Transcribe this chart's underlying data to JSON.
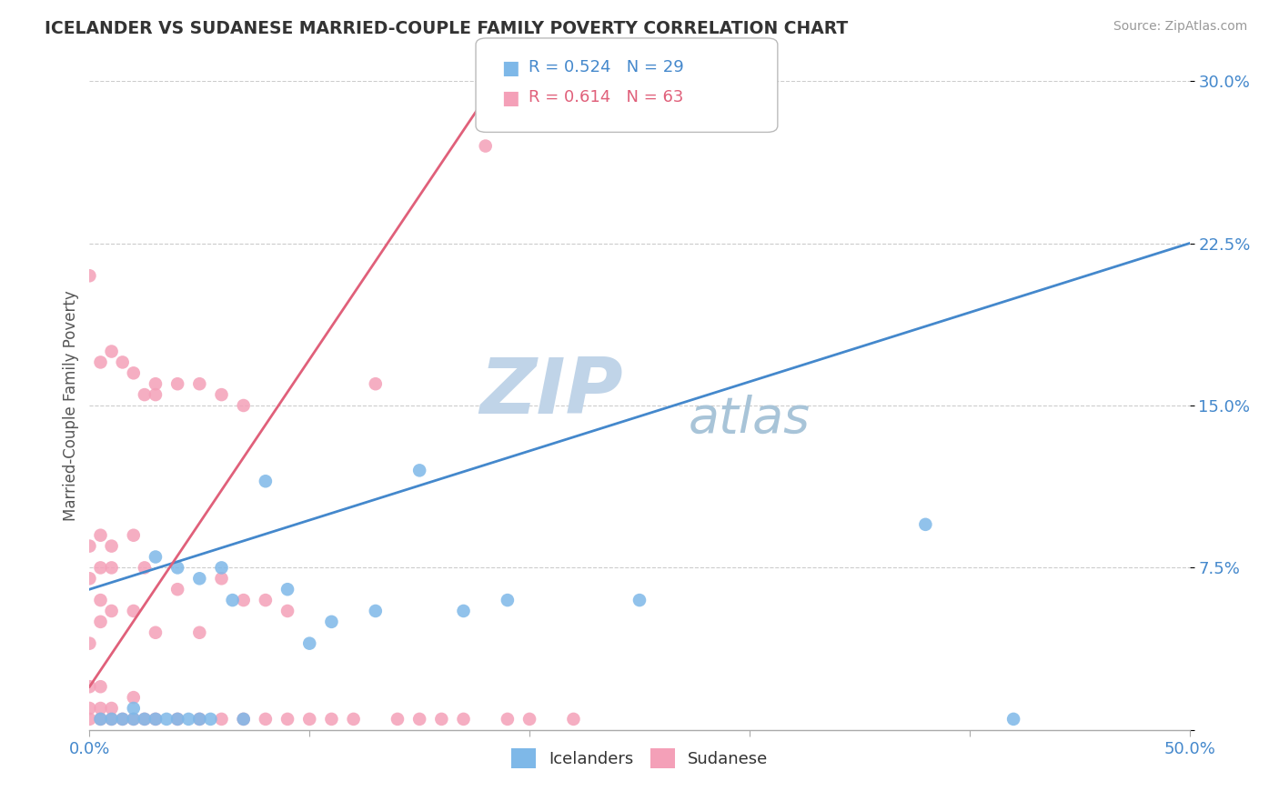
{
  "title": "ICELANDER VS SUDANESE MARRIED-COUPLE FAMILY POVERTY CORRELATION CHART",
  "source": "Source: ZipAtlas.com",
  "ylabel": "Married-Couple Family Poverty",
  "xlim": [
    0.0,
    0.5
  ],
  "ylim": [
    0.0,
    0.3
  ],
  "xticks": [
    0.0,
    0.1,
    0.2,
    0.3,
    0.4,
    0.5
  ],
  "xticklabels": [
    "0.0%",
    "",
    "",
    "",
    "",
    "50.0%"
  ],
  "yticks": [
    0.0,
    0.075,
    0.15,
    0.225,
    0.3
  ],
  "yticklabels": [
    "",
    "7.5%",
    "15.0%",
    "22.5%",
    "30.0%"
  ],
  "blue_R": 0.524,
  "blue_N": 29,
  "pink_R": 0.614,
  "pink_N": 63,
  "blue_color": "#7EB8E8",
  "pink_color": "#F4A0B8",
  "blue_line_color": "#4488CC",
  "pink_line_color": "#E0607A",
  "watermark_zip": "ZIP",
  "watermark_atlas": "atlas",
  "watermark_zip_color": "#C0D4E8",
  "watermark_atlas_color": "#A8C4D8",
  "blue_scatter_x": [
    0.005,
    0.01,
    0.015,
    0.02,
    0.02,
    0.025,
    0.03,
    0.03,
    0.035,
    0.04,
    0.04,
    0.045,
    0.05,
    0.05,
    0.055,
    0.06,
    0.065,
    0.07,
    0.08,
    0.09,
    0.1,
    0.11,
    0.13,
    0.15,
    0.17,
    0.19,
    0.25,
    0.38,
    0.42
  ],
  "blue_scatter_y": [
    0.005,
    0.005,
    0.005,
    0.005,
    0.01,
    0.005,
    0.005,
    0.08,
    0.005,
    0.005,
    0.075,
    0.005,
    0.005,
    0.07,
    0.005,
    0.075,
    0.06,
    0.005,
    0.115,
    0.065,
    0.04,
    0.05,
    0.055,
    0.12,
    0.055,
    0.06,
    0.06,
    0.095,
    0.005
  ],
  "pink_scatter_x": [
    0.0,
    0.0,
    0.0,
    0.0,
    0.0,
    0.0,
    0.0,
    0.005,
    0.005,
    0.005,
    0.005,
    0.005,
    0.005,
    0.005,
    0.005,
    0.01,
    0.01,
    0.01,
    0.01,
    0.01,
    0.01,
    0.015,
    0.015,
    0.02,
    0.02,
    0.02,
    0.02,
    0.02,
    0.025,
    0.025,
    0.025,
    0.03,
    0.03,
    0.03,
    0.03,
    0.04,
    0.04,
    0.04,
    0.05,
    0.05,
    0.05,
    0.06,
    0.06,
    0.06,
    0.07,
    0.07,
    0.07,
    0.08,
    0.08,
    0.09,
    0.09,
    0.1,
    0.11,
    0.12,
    0.13,
    0.14,
    0.15,
    0.16,
    0.17,
    0.18,
    0.19,
    0.2,
    0.22
  ],
  "pink_scatter_y": [
    0.005,
    0.01,
    0.02,
    0.04,
    0.07,
    0.085,
    0.21,
    0.005,
    0.01,
    0.02,
    0.05,
    0.06,
    0.075,
    0.09,
    0.17,
    0.005,
    0.01,
    0.055,
    0.075,
    0.085,
    0.175,
    0.005,
    0.17,
    0.005,
    0.015,
    0.055,
    0.09,
    0.165,
    0.005,
    0.075,
    0.155,
    0.005,
    0.045,
    0.16,
    0.155,
    0.005,
    0.065,
    0.16,
    0.005,
    0.045,
    0.16,
    0.005,
    0.07,
    0.155,
    0.005,
    0.06,
    0.15,
    0.005,
    0.06,
    0.005,
    0.055,
    0.005,
    0.005,
    0.005,
    0.16,
    0.005,
    0.005,
    0.005,
    0.005,
    0.27,
    0.005,
    0.005,
    0.005
  ],
  "blue_line_x0": 0.0,
  "blue_line_y0": 0.065,
  "blue_line_x1": 0.5,
  "blue_line_y1": 0.225,
  "pink_line_x0": 0.0,
  "pink_line_y0": 0.02,
  "pink_line_x1": 0.185,
  "pink_line_y1": 0.3
}
